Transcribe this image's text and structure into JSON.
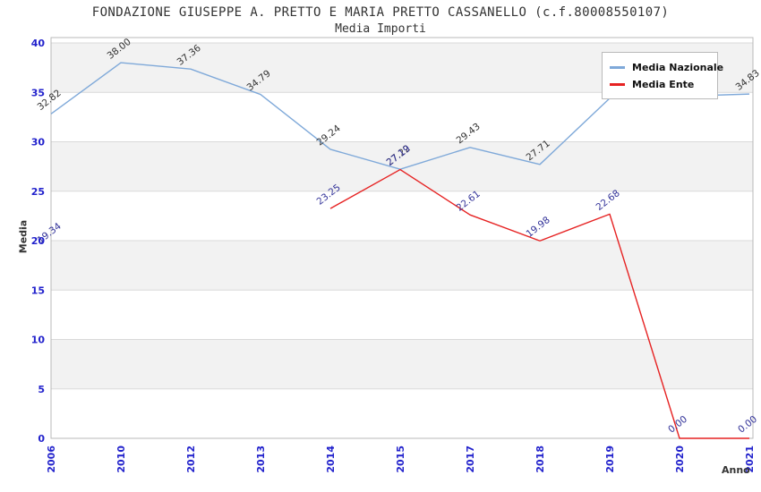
{
  "chart_data": {
    "type": "line",
    "title": "FONDAZIONE GIUSEPPE A. PRETTO E MARIA PRETTO CASSANELLO (c.f.80008550107)",
    "subtitle": "Media Importi",
    "xlabel": "Anno",
    "ylabel": "Media",
    "categories": [
      "2006",
      "2010",
      "2012",
      "2013",
      "2014",
      "2015",
      "2017",
      "2018",
      "2019",
      "2020",
      "2021"
    ],
    "ylim": [
      0,
      40
    ],
    "yticks": [
      0,
      5,
      10,
      15,
      20,
      25,
      30,
      35,
      40
    ],
    "grid": "horizontal-bands",
    "legend_position": "top-right",
    "series": [
      {
        "name": "Media Nazionale",
        "color": "#7fa9d9",
        "label_color": "#333333",
        "values": [
          32.82,
          38.0,
          37.36,
          34.79,
          29.24,
          27.22,
          29.43,
          27.71,
          34.4,
          34.6,
          34.83
        ],
        "labels": [
          "32.82",
          "38.00",
          "37.36",
          "34.79",
          "29.24",
          "27.22",
          "29.43",
          "27.71",
          null,
          null,
          "34.83"
        ]
      },
      {
        "name": "Media Ente",
        "color": "#e62222",
        "label_color": "#333399",
        "values": [
          19.34,
          null,
          null,
          null,
          23.25,
          27.19,
          22.61,
          19.98,
          22.68,
          0.0,
          0.0
        ],
        "labels": [
          "19.34",
          null,
          null,
          null,
          "23.25",
          "27.19",
          "22.61",
          "19.98",
          "22.68",
          "0.00",
          "0.00"
        ]
      }
    ],
    "colors": {
      "tick_label": "#2222cc",
      "band_gray": "#f2f2f2",
      "grid_line": "#d9d9d9",
      "spine": "#b8b8b8",
      "title_text": "#333333"
    }
  }
}
